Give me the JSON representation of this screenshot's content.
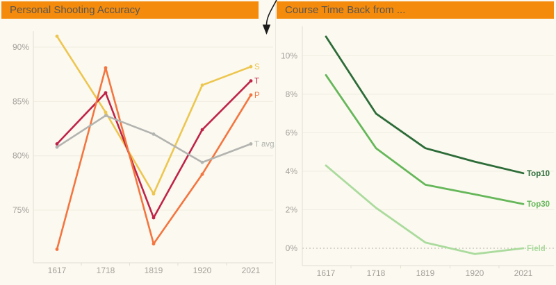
{
  "colors": {
    "background": "#fbf9f0",
    "header_bg": "#f48b0c",
    "header_text": "#5c564f",
    "axis_text": "#a3a19a",
    "gridline": "#f0ede1",
    "axis_line": "#e2dfd3",
    "zero_dotted_line": "#b5b2a8",
    "panel_divider": "#eceadf",
    "arrow": "#1c1c1c"
  },
  "chart_data": [
    {
      "type": "line",
      "title": "Personal Shooting Accuracy",
      "categories": [
        "1617",
        "1718",
        "1819",
        "1920",
        "2021"
      ],
      "series": [
        {
          "name": "S",
          "color": "#edc64f",
          "values": [
            91.0,
            84.0,
            76.5,
            86.5,
            88.2
          ]
        },
        {
          "name": "T",
          "color": "#bf2347",
          "values": [
            81.1,
            85.8,
            74.3,
            82.4,
            86.9
          ]
        },
        {
          "name": "P",
          "color": "#f4753f",
          "values": [
            71.4,
            88.1,
            71.9,
            78.3,
            85.6
          ]
        },
        {
          "name": "T avg.",
          "color": "#b3b3b0",
          "values": [
            80.8,
            83.7,
            82.0,
            79.4,
            81.1
          ]
        }
      ],
      "ytick_values": [
        90,
        85,
        80,
        75
      ],
      "ytick_labels": [
        "90%",
        "85%",
        "80%",
        "75%"
      ],
      "ylim": [
        70,
        93
      ],
      "markers": true,
      "dotted_zero": false,
      "legend_position": "line-end-labels",
      "grid": true
    },
    {
      "type": "line",
      "title": "Course Time Back from ...",
      "categories": [
        "1617",
        "1718",
        "1819",
        "1920",
        "2021"
      ],
      "series": [
        {
          "name": "Top10",
          "color": "#2d6c38",
          "values": [
            11.0,
            7.0,
            5.2,
            4.5,
            3.9
          ]
        },
        {
          "name": "Top30",
          "color": "#66b75a",
          "values": [
            9.0,
            5.2,
            3.3,
            2.8,
            2.3
          ]
        },
        {
          "name": "Field",
          "color": "#abdb9d",
          "values": [
            4.3,
            2.1,
            0.3,
            -0.3,
            0.0
          ]
        }
      ],
      "ytick_values": [
        0,
        2,
        4,
        6,
        8,
        10
      ],
      "ytick_labels": [
        "0%",
        "2%",
        "4%",
        "6%",
        "8%",
        "10%"
      ],
      "ylim": [
        -0.5,
        11.5
      ],
      "markers": false,
      "dotted_zero": true,
      "legend_position": "line-end-labels",
      "grid": true
    }
  ],
  "annotation": {
    "arrow_icon": "down-arrow"
  }
}
